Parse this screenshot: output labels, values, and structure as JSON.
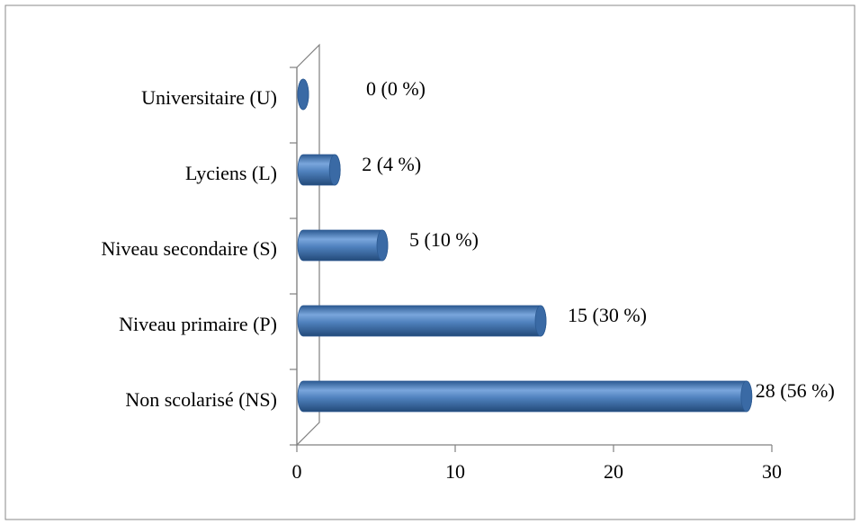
{
  "chart_data": {
    "type": "bar",
    "orientation": "horizontal",
    "categories": [
      "Universitaire (U)",
      "Lyciens (L)",
      "Niveau secondaire (S)",
      "Niveau primaire (P)",
      "Non scolarisé (NS)"
    ],
    "values": [
      0,
      2,
      5,
      15,
      28
    ],
    "value_labels": [
      "0 (0 %)",
      "2 (4 %)",
      "5 (10 %)",
      "15 (30 %)",
      "28 (56 %)"
    ],
    "color": "#4f81bd",
    "xlim": [
      0,
      30
    ],
    "xticks": [
      0,
      10,
      20,
      30
    ],
    "grid": false
  }
}
